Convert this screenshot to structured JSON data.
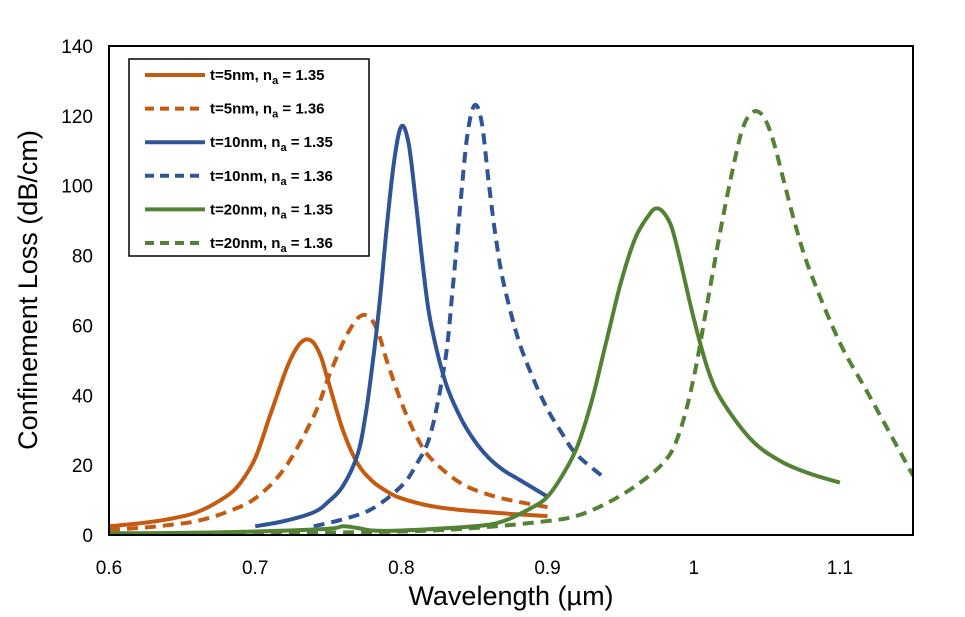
{
  "chart_data": {
    "type": "line",
    "title": "",
    "xlabel": "Wavelength (µm)",
    "ylabel": "Confinement Loss (dB/cm)",
    "xlim": [
      0.6,
      1.15
    ],
    "ylim": [
      0,
      140
    ],
    "xticks": [
      0.6,
      0.7,
      0.8,
      0.9,
      1.0,
      1.1
    ],
    "xtick_labels": [
      "0.6",
      "0.7",
      "0.8",
      "0.9",
      "1",
      "1.1"
    ],
    "yticks": [
      0,
      20,
      40,
      60,
      80,
      100,
      120,
      140
    ],
    "ytick_labels": [
      "0",
      "20",
      "40",
      "60",
      "80",
      "100",
      "120",
      "140"
    ],
    "grid": false,
    "legend_position": "top-left",
    "series": [
      {
        "name": "t=5nm, na = 1.35",
        "label_main": "t=5nm, n",
        "label_sub": "a",
        "label_tail": " = 1.35",
        "color": "#C55A11",
        "dash": "solid",
        "x": [
          0.6,
          0.62,
          0.64,
          0.66,
          0.68,
          0.69,
          0.7,
          0.71,
          0.72,
          0.725,
          0.73,
          0.735,
          0.74,
          0.745,
          0.75,
          0.76,
          0.77,
          0.78,
          0.79,
          0.8,
          0.82,
          0.84,
          0.86,
          0.88,
          0.9
        ],
        "y": [
          2.5,
          3.3,
          4.5,
          6.5,
          11,
          15,
          22,
          34,
          46,
          51,
          54.5,
          56,
          55,
          51,
          44,
          30,
          20.5,
          15.5,
          12.5,
          10.5,
          8.3,
          7.2,
          6.5,
          5.9,
          5.4
        ]
      },
      {
        "name": "t=5nm, na = 1.36",
        "label_main": "t=5nm, n",
        "label_sub": "a",
        "label_tail": " = 1.36",
        "color": "#C55A11",
        "dash": "dashed",
        "x": [
          0.6,
          0.62,
          0.64,
          0.66,
          0.68,
          0.7,
          0.72,
          0.74,
          0.75,
          0.76,
          0.765,
          0.77,
          0.775,
          0.78,
          0.785,
          0.79,
          0.8,
          0.81,
          0.82,
          0.84,
          0.86,
          0.88,
          0.9
        ],
        "y": [
          1.5,
          2,
          2.8,
          4,
          6.5,
          10.5,
          19,
          34,
          45,
          55,
          59,
          62,
          63,
          61.5,
          57,
          50,
          38,
          28.5,
          22,
          15,
          11.5,
          9.5,
          8
        ]
      },
      {
        "name": "t=10nm, na = 1.35",
        "label_main": "t=10nm, n",
        "label_sub": "a",
        "label_tail": " = 1.35",
        "color": "#2F5597",
        "dash": "solid",
        "x": [
          0.7,
          0.72,
          0.74,
          0.75,
          0.76,
          0.77,
          0.775,
          0.78,
          0.785,
          0.79,
          0.795,
          0.8,
          0.805,
          0.81,
          0.815,
          0.82,
          0.83,
          0.84,
          0.85,
          0.86,
          0.87,
          0.88,
          0.9
        ],
        "y": [
          2.5,
          4,
          6.5,
          9.5,
          14,
          23,
          33,
          48,
          66,
          88,
          107,
          117,
          112,
          95,
          76,
          61,
          44,
          34,
          27,
          22,
          18.5,
          16,
          11
        ]
      },
      {
        "name": "t=10nm, na = 1.36",
        "label_main": "t=10nm, n",
        "label_sub": "a",
        "label_tail": " = 1.36",
        "color": "#2F5597",
        "dash": "dashed",
        "x": [
          0.74,
          0.76,
          0.78,
          0.8,
          0.81,
          0.82,
          0.83,
          0.835,
          0.84,
          0.845,
          0.85,
          0.855,
          0.86,
          0.865,
          0.87,
          0.88,
          0.89,
          0.9,
          0.91,
          0.92,
          0.94
        ],
        "y": [
          2.5,
          4.5,
          7.5,
          14,
          20,
          29,
          50,
          70,
          93,
          114,
          123,
          118,
          100,
          84,
          72,
          56,
          45,
          36,
          29,
          23,
          16
        ]
      },
      {
        "name": "t=20nm, na = 1.35",
        "label_main": "t=20nm, n",
        "label_sub": "a",
        "label_tail": " = 1.35",
        "color": "#548235",
        "dash": "solid",
        "x": [
          0.6,
          0.65,
          0.7,
          0.75,
          0.76,
          0.77,
          0.78,
          0.8,
          0.85,
          0.87,
          0.89,
          0.9,
          0.91,
          0.92,
          0.93,
          0.94,
          0.95,
          0.96,
          0.97,
          0.975,
          0.98,
          0.985,
          0.99,
          1.0,
          1.01,
          1.02,
          1.04,
          1.06,
          1.08,
          1.1
        ],
        "y": [
          0.5,
          0.6,
          1,
          1.8,
          2.5,
          2,
          1.3,
          1.3,
          2.5,
          4,
          8,
          11,
          17,
          25,
          38,
          55,
          72,
          85,
          92,
          93.5,
          92,
          88,
          80,
          62,
          47,
          38,
          27,
          21,
          17.5,
          15
        ]
      },
      {
        "name": "t=20nm, na = 1.36",
        "label_main": "t=20nm, n",
        "label_sub": "a",
        "label_tail": " = 1.36",
        "color": "#548235",
        "dash": "dashed",
        "x": [
          0.6,
          0.7,
          0.8,
          0.85,
          0.9,
          0.92,
          0.94,
          0.96,
          0.98,
          0.99,
          1.0,
          1.01,
          1.02,
          1.03,
          1.035,
          1.04,
          1.045,
          1.05,
          1.055,
          1.06,
          1.07,
          1.08,
          1.1,
          1.12,
          1.15
        ],
        "y": [
          0.3,
          0.5,
          1,
          2,
          4,
          5.5,
          9,
          14,
          21,
          29,
          45,
          68,
          91,
          111,
          118,
          121,
          121,
          118,
          112,
          104,
          88,
          75,
          55,
          40,
          17
        ]
      }
    ]
  }
}
